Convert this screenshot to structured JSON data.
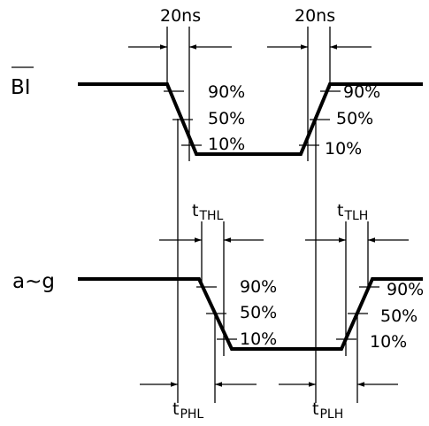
{
  "signals": {
    "top": "BI",
    "bottom": "a~g"
  },
  "top_timing": {
    "fall_time": "20ns",
    "rise_time": "20ns"
  },
  "top_levels": {
    "fall": [
      "90%",
      "50%",
      "10%"
    ],
    "rise": [
      "90%",
      "50%",
      "10%"
    ]
  },
  "bottom_timing": {
    "t_thl": {
      "base": "t",
      "sub": "THL"
    },
    "t_tlh": {
      "base": "t",
      "sub": "TLH"
    },
    "t_phl": {
      "base": "t",
      "sub": "PHL"
    },
    "t_plh": {
      "base": "t",
      "sub": "PLH"
    }
  },
  "bottom_levels": {
    "fall": [
      "90%",
      "50%",
      "10%"
    ],
    "rise": [
      "90%",
      "50%",
      "10%"
    ]
  }
}
